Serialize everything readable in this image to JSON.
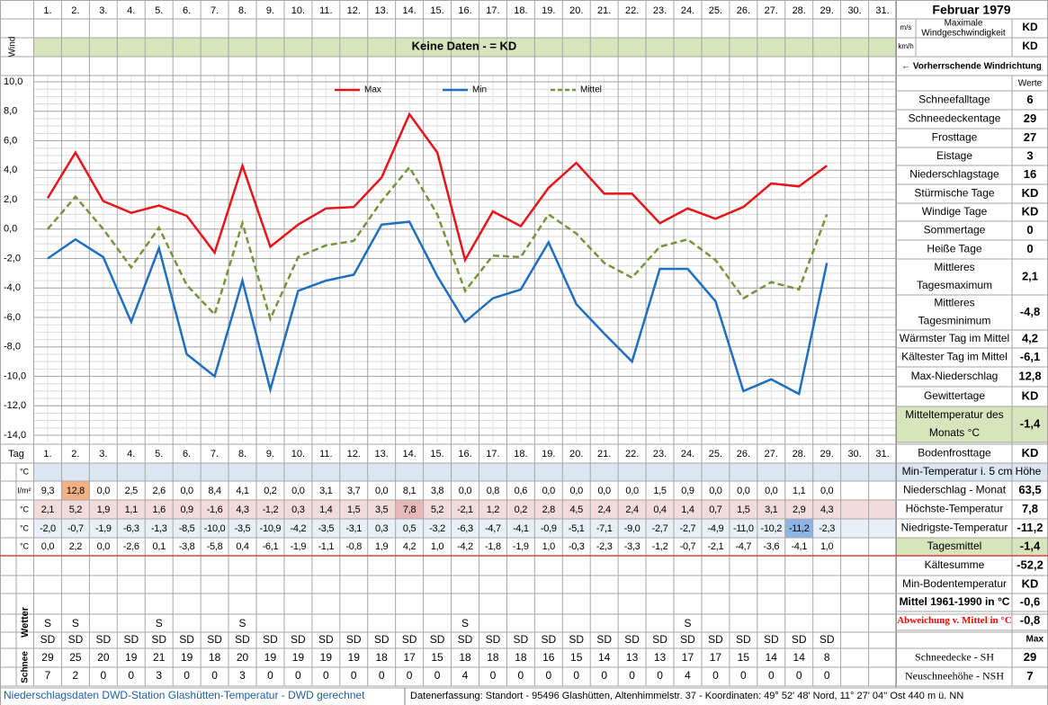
{
  "header": {
    "title": "Februar 1979",
    "wind_label": "Wind",
    "unit_ms": "m/s",
    "unit_kmh": "km/h",
    "wind_max_label": [
      "Maximale",
      "Windgeschwindigkeit"
    ],
    "wind_max_ms": "KD",
    "wind_max_kmh": "KD",
    "no_data": "Keine Daten -  = KD",
    "wind_dir_label": "← Vorherrschende Windrichtung"
  },
  "chart_data": {
    "type": "line",
    "categories": [
      "1.",
      "2.",
      "3.",
      "4.",
      "5.",
      "6.",
      "7.",
      "8.",
      "9.",
      "10.",
      "11.",
      "12.",
      "13.",
      "14.",
      "15.",
      "16.",
      "17.",
      "18.",
      "19.",
      "20.",
      "21.",
      "22.",
      "23.",
      "24.",
      "25.",
      "26.",
      "27.",
      "28.",
      "29.",
      "30.",
      "31."
    ],
    "series": [
      {
        "name": "Max",
        "color": "#e8141b",
        "values": [
          2.1,
          5.2,
          1.9,
          1.1,
          1.6,
          0.9,
          -1.6,
          4.3,
          -1.2,
          0.3,
          1.4,
          1.5,
          3.5,
          7.8,
          5.2,
          -2.1,
          1.2,
          0.2,
          2.8,
          4.5,
          2.4,
          2.4,
          0.4,
          1.4,
          0.7,
          1.5,
          3.1,
          2.9,
          4.3,
          null,
          null
        ],
        "value_labels": [
          "2,1",
          "5,2",
          "1,9",
          "1,1",
          "1,6",
          "0,9",
          "-1,6",
          "4,3",
          "-1,2",
          "0,3",
          "1,4",
          "1,5",
          "3,5",
          "7,8",
          "5,2",
          "-2,1",
          "1,2",
          "0,2",
          "2,8",
          "4,5",
          "2,4",
          "2,4",
          "0,4",
          "1,4",
          "0,7",
          "1,5",
          "3,1",
          "2,9",
          "4,3",
          null,
          null
        ]
      },
      {
        "name": "Min",
        "color": "#1f6fc0",
        "values": [
          -2.0,
          -0.7,
          -1.9,
          -6.3,
          -1.3,
          -8.5,
          -10.0,
          -3.5,
          -10.9,
          -4.2,
          -3.5,
          -3.1,
          0.3,
          0.5,
          -3.2,
          -6.3,
          -4.7,
          -4.1,
          -0.9,
          -5.1,
          -7.1,
          -9.0,
          -2.7,
          -2.7,
          -4.9,
          -11.0,
          -10.2,
          -11.2,
          -2.3,
          null,
          null
        ],
        "value_labels": [
          "-2,0",
          "-0,7",
          "-1,9",
          "-6,3",
          "-1,3",
          "-8,5",
          "-10,0",
          "-3,5",
          "-10,9",
          "-4,2",
          "-3,5",
          "-3,1",
          "0,3",
          "0,5",
          "-3,2",
          "-6,3",
          "-4,7",
          "-4,1",
          "-0,9",
          "-5,1",
          "-7,1",
          "-9,0",
          "-2,7",
          "-2,7",
          "-4,9",
          "-11,0",
          "-10,2",
          "-11,2",
          "-2,3",
          null,
          null
        ]
      },
      {
        "name": "Mittel",
        "color": "#77933c",
        "dashed": true,
        "values": [
          0.0,
          2.2,
          0.0,
          -2.6,
          0.1,
          -3.8,
          -5.8,
          0.4,
          -6.1,
          -1.9,
          -1.1,
          -0.8,
          1.9,
          4.2,
          1.0,
          -4.2,
          -1.8,
          -1.9,
          1.0,
          -0.3,
          -2.3,
          -3.3,
          -1.2,
          -0.7,
          -2.1,
          -4.7,
          -3.6,
          -4.1,
          1.0,
          null,
          null
        ],
        "value_labels": [
          "0,0",
          "2,2",
          "0,0",
          "-2,6",
          "0,1",
          "-3,8",
          "-5,8",
          "0,4",
          "-6,1",
          "-1,9",
          "-1,1",
          "-0,8",
          "1,9",
          "4,2",
          "1,0",
          "-4,2",
          "-1,8",
          "-1,9",
          "1,0",
          "-0,3",
          "-2,3",
          "-3,3",
          "-1,2",
          "-0,7",
          "-2,1",
          "-4,7",
          "-3,6",
          "-4,1",
          "1,0",
          null,
          null
        ]
      }
    ],
    "ylim": [
      -14,
      10
    ],
    "yticks": [
      {
        "value": 10,
        "label": "10,0"
      },
      {
        "value": 8,
        "label": "8,0"
      },
      {
        "value": 6,
        "label": "6,0"
      },
      {
        "value": 4,
        "label": "4,0"
      },
      {
        "value": 2,
        "label": "2,0"
      },
      {
        "value": 0,
        "label": "0,0"
      },
      {
        "value": -2,
        "label": "-2,0"
      },
      {
        "value": -4,
        "label": "-4,0"
      },
      {
        "value": -6,
        "label": "-6,0"
      },
      {
        "value": -8,
        "label": "-8,0"
      },
      {
        "value": -10,
        "label": "-10,0"
      },
      {
        "value": -12,
        "label": "-12,0"
      },
      {
        "value": -14,
        "label": "-14,0"
      }
    ],
    "grid": true,
    "legend": "top"
  },
  "table": {
    "tag_label": "Tag",
    "unit_min5": "°C",
    "unit_precip": "l/m²",
    "unit_max": "°C",
    "unit_min": "°C",
    "unit_mean": "°C",
    "precipitation": [
      "9,3",
      "12,8",
      "0,0",
      "2,5",
      "2,6",
      "0,0",
      "8,4",
      "4,1",
      "0,2",
      "0,0",
      "3,1",
      "3,7",
      "0,0",
      "8,1",
      "3,8",
      "0,0",
      "0,8",
      "0,6",
      "0,0",
      "0,0",
      "0,0",
      "0,0",
      "1,5",
      "0,9",
      "0,0",
      "0,0",
      "0,0",
      "1,1",
      "0,0",
      null,
      null
    ],
    "weather_label": "Wetter",
    "weather_rows": [
      [
        "S",
        "S",
        null,
        null,
        "S",
        null,
        null,
        "S",
        null,
        null,
        null,
        null,
        null,
        null,
        null,
        "S",
        null,
        null,
        null,
        null,
        null,
        null,
        null,
        "S",
        null,
        null,
        null,
        null,
        null,
        null,
        null
      ],
      [
        "SD",
        "SD",
        "SD",
        "SD",
        "SD",
        "SD",
        "SD",
        "SD",
        "SD",
        "SD",
        "SD",
        "SD",
        "SD",
        "SD",
        "SD",
        "SD",
        "SD",
        "SD",
        "SD",
        "SD",
        "SD",
        "SD",
        "SD",
        "SD",
        "SD",
        "SD",
        "SD",
        "SD",
        "SD",
        null,
        null
      ]
    ],
    "snow_label": "Schnee",
    "snow_depth": [
      29,
      25,
      20,
      19,
      21,
      19,
      18,
      20,
      19,
      19,
      19,
      19,
      18,
      17,
      15,
      18,
      18,
      18,
      16,
      15,
      14,
      13,
      13,
      17,
      17,
      15,
      14,
      14,
      8,
      null,
      null
    ],
    "new_snow": [
      7,
      2,
      0,
      0,
      3,
      0,
      0,
      3,
      0,
      0,
      0,
      0,
      0,
      0,
      0,
      4,
      0,
      0,
      0,
      0,
      0,
      0,
      0,
      4,
      0,
      0,
      0,
      0,
      0,
      null,
      null
    ]
  },
  "stats": {
    "header": "Werte",
    "rows": [
      {
        "label": [
          "Schneefalltage"
        ],
        "value": "6"
      },
      {
        "label": [
          "Schneedeckentage"
        ],
        "value": "29"
      },
      {
        "label": [
          "Frosttage"
        ],
        "value": "27"
      },
      {
        "label": [
          "Eistage"
        ],
        "value": "3"
      },
      {
        "label": [
          "Niederschlagstage"
        ],
        "value": "16"
      },
      {
        "label": [
          "Stürmische Tage"
        ],
        "value": "KD"
      },
      {
        "label": [
          "Windige Tage"
        ],
        "value": "KD"
      },
      {
        "label": [
          "Sommertage"
        ],
        "value": "0"
      },
      {
        "label": [
          "Heiße Tage"
        ],
        "value": "0"
      },
      {
        "label": [
          "Mittleres",
          "Tagesmaximum"
        ],
        "value": "2,1"
      },
      {
        "label": [
          "Mittleres",
          "Tagesminimum"
        ],
        "value": "-4,8"
      },
      {
        "label": [
          "Wärmster Tag im Mittel"
        ],
        "value": "4,2"
      },
      {
        "label": [
          "Kältester Tag im Mittel"
        ],
        "value": "-6,1"
      },
      {
        "label": [
          "Max-Niederschlag"
        ],
        "value": "12,8"
      },
      {
        "label": [
          "Gewittertage"
        ],
        "value": "KD"
      },
      {
        "label": [
          "Mitteltemperatur des",
          "Monats °C"
        ],
        "value": "-1,4"
      },
      {
        "label": [
          "Bodenfrosttage"
        ],
        "value": "KD"
      }
    ],
    "lower": [
      {
        "label": [
          "Min-Temperatur i. 5 cm Höhe"
        ]
      },
      {
        "label": [
          "Niederschlag - Monat"
        ],
        "value": "63,5"
      },
      {
        "label": [
          "Höchste-Temperatur"
        ],
        "value": "7,8"
      },
      {
        "label": [
          "Niedrigste-Temperatur"
        ],
        "value": "-11,2"
      },
      {
        "label": [
          "Tagesmittel"
        ],
        "value": "-1,4"
      },
      {
        "label": [
          "Kältesumme"
        ],
        "value": "-52,2"
      },
      {
        "label": [
          "Min-Bodentemperatur"
        ],
        "value": "KD"
      },
      {
        "label": [
          "Mittel 1961-1990 in °C"
        ],
        "value": "-0,6"
      },
      {
        "label": [
          "Abweichung v. Mittel in °C"
        ],
        "value": "-0,8"
      },
      {
        "label": [
          "Max"
        ]
      },
      {
        "label": [
          "Schneedecke -  SH"
        ],
        "value": "29"
      },
      {
        "label": [
          "Neuschneehöhe - NSH"
        ],
        "value": "7"
      }
    ]
  },
  "footer": {
    "left": "Niederschlagsdaten DWD-Station Glashütten-Temperatur -  DWD gerechnet",
    "right": "Datenerfassung: Standort -  95496 Glashütten, Altenhimmelstr. 37 - Koordinaten:  49° 52' 48' Nord,   11° 27' 04'' Ost   440 m ü. NN"
  }
}
